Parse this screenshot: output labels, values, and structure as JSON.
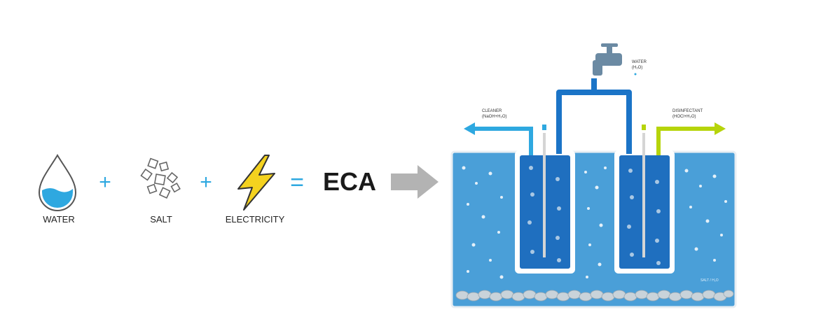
{
  "equation": {
    "water_label": "WATER",
    "salt_label": "SALT",
    "electricity_label": "ELECTRICITY",
    "plus": "+",
    "equals": "=",
    "result": "ECA",
    "icons": {
      "water": "water-drop-icon",
      "salt": "salt-crystals-icon",
      "electricity": "lightning-bolt-icon",
      "arrow": "right-arrow-icon"
    }
  },
  "cell": {
    "tap_label_line1": "WATER",
    "tap_label_line2": "(H₂O)",
    "left_output_line1": "CLEANER",
    "left_output_line2": "(NaOH+H₂O)",
    "right_output_line1": "DISINFECTANT",
    "right_output_line2": "(HOCl+H₂O)",
    "tank_label": "SALT / H₂O"
  },
  "colors": {
    "accent_blue": "#2ea8e0",
    "tank_blue": "#4a9fd8",
    "chamber_blue": "#1f6fbf",
    "pipe_blue": "#1b74c7",
    "bolt_yellow": "#f4d21f",
    "output_green": "#b6d40a",
    "arrow_gray": "#b3b3b3",
    "faucet_gray": "#6b8aa3"
  }
}
